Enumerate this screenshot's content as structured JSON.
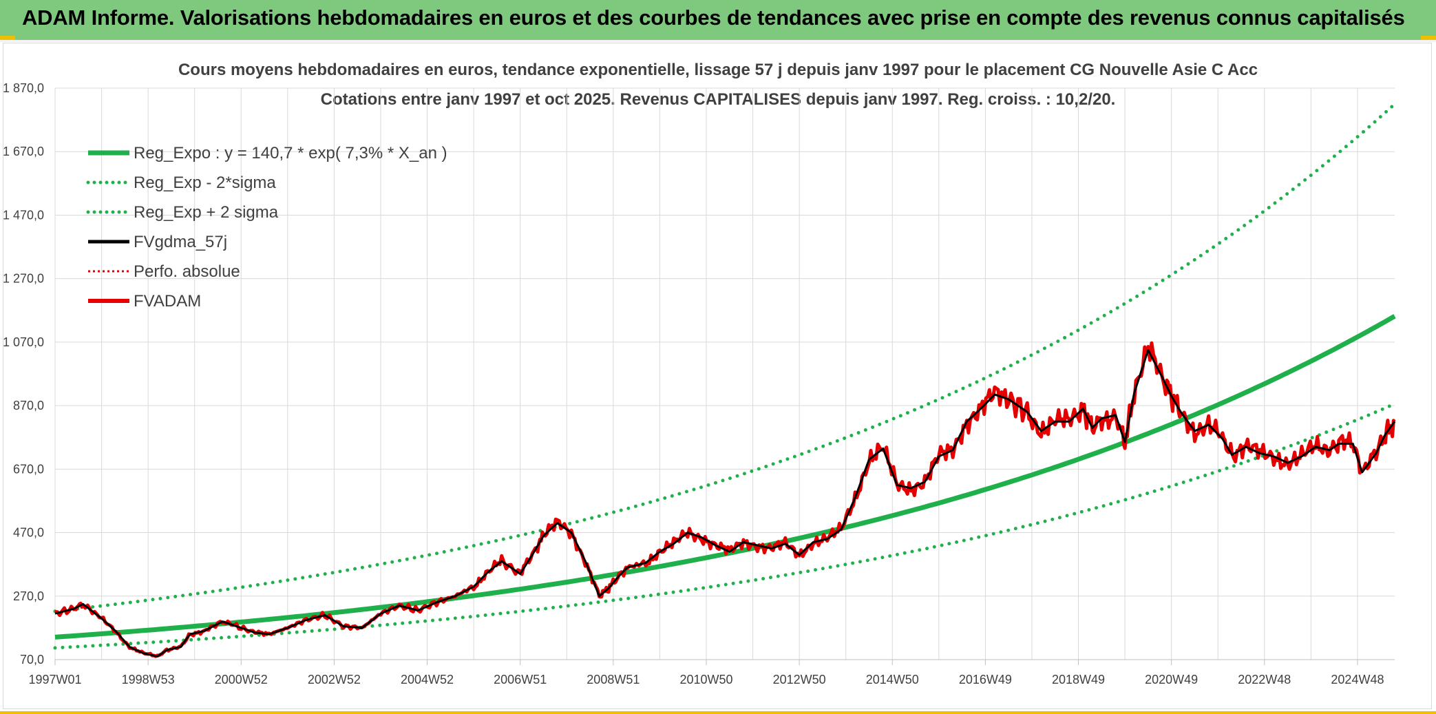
{
  "header": {
    "title": "ADAM Informe. Valorisations hebdomadaires en euros et des courbes de tendances avec prise en compte des revenus connus capitalisés"
  },
  "chart_data": {
    "type": "line",
    "title": "Cours moyens hebdomadaires en euros, tendance exponentielle, lissage 57 j depuis janv 1997 pour le placement CG Nouvelle Asie C Acc",
    "subtitle": "Cotations entre janv 1997 et oct 2025. Revenus CAPITALISES depuis janv 1997. Reg. croiss. : 10,2/20.",
    "xlabel": "",
    "ylabel": "",
    "ylim": [
      70,
      1870
    ],
    "xlim": [
      1997.0,
      2025.8
    ],
    "y_ticks": [
      "70,0",
      "270,0",
      "470,0",
      "670,0",
      "870,0",
      "1 070,0",
      "1 270,0",
      "1 470,0",
      "1 670,0",
      "1 870,0"
    ],
    "y_tick_values": [
      70,
      270,
      470,
      670,
      870,
      1070,
      1270,
      1470,
      1670,
      1870
    ],
    "x_ticks": [
      "1997W01",
      "1998W53",
      "2000W52",
      "2002W52",
      "2004W52",
      "2006W51",
      "2008W51",
      "2010W50",
      "2012W50",
      "2014W50",
      "2016W49",
      "2018W49",
      "2020W49",
      "2022W48",
      "2024W48"
    ],
    "x_tick_values": [
      1997.0,
      1999.0,
      2001.0,
      2003.0,
      2005.0,
      2007.0,
      2009.0,
      2011.0,
      2013.0,
      2015.0,
      2017.0,
      2019.0,
      2021.0,
      2023.0,
      2025.0
    ],
    "legend_position": "top-left",
    "regression": {
      "a": 140.7,
      "rate": 0.073,
      "lower_factor": 0.76,
      "upper_factor": 1.58
    },
    "series": [
      {
        "name": "Reg_Expo : y = 140,7 * exp( 7,3% *  X_an )",
        "style": "solid-thick",
        "color": "#1fb04c"
      },
      {
        "name": "Reg_Exp - 2*sigma",
        "style": "dotted",
        "color": "#1fb04c"
      },
      {
        "name": "Reg_Exp + 2 sigma",
        "style": "dotted",
        "color": "#1fb04c"
      },
      {
        "name": "FVgdma_57j",
        "style": "solid",
        "color": "#000000"
      },
      {
        "name": "Perfo. absolue",
        "style": "dotted-thin",
        "color": "#e00000"
      },
      {
        "name": "FVADAM",
        "style": "solid-thick",
        "color": "#e60000",
        "x": [
          1997.0,
          1997.4,
          1997.6,
          1998.0,
          1998.3,
          1998.6,
          1998.9,
          1999.2,
          1999.4,
          1999.7,
          1999.9,
          2000.2,
          2000.6,
          2000.9,
          2001.3,
          2001.6,
          2002.0,
          2002.4,
          2002.8,
          2003.2,
          2003.6,
          2004.0,
          2004.4,
          2004.8,
          2005.2,
          2005.6,
          2006.0,
          2006.3,
          2006.6,
          2007.0,
          2007.3,
          2007.5,
          2007.8,
          2008.1,
          2008.4,
          2008.7,
          2008.9,
          2009.1,
          2009.3,
          2009.7,
          2010.0,
          2010.3,
          2010.6,
          2010.9,
          2011.2,
          2011.5,
          2011.8,
          2012.1,
          2012.4,
          2012.7,
          2013.0,
          2013.3,
          2013.6,
          2013.9,
          2014.2,
          2014.5,
          2014.8,
          2015.1,
          2015.4,
          2015.7,
          2016.0,
          2016.3,
          2016.6,
          2016.9,
          2017.2,
          2017.5,
          2017.9,
          2018.2,
          2018.5,
          2018.8,
          2019.1,
          2019.3,
          2019.5,
          2019.8,
          2020.0,
          2020.2,
          2020.5,
          2020.8,
          2021.0,
          2021.2,
          2021.5,
          2021.8,
          2022.1,
          2022.3,
          2022.6,
          2022.9,
          2023.2,
          2023.5,
          2023.8,
          2024.1,
          2024.4,
          2024.6,
          2024.9,
          2025.1,
          2025.4,
          2025.6,
          2025.8
        ],
        "values": [
          215,
          230,
          245,
          200,
          160,
          110,
          90,
          80,
          100,
          110,
          150,
          160,
          190,
          175,
          155,
          150,
          170,
          195,
          210,
          175,
          170,
          215,
          240,
          225,
          250,
          270,
          300,
          345,
          380,
          340,
          410,
          460,
          500,
          470,
          380,
          270,
          295,
          330,
          360,
          375,
          410,
          435,
          470,
          455,
          430,
          410,
          440,
          430,
          420,
          435,
          400,
          440,
          450,
          480,
          580,
          700,
          735,
          620,
          610,
          630,
          710,
          730,
          820,
          860,
          905,
          890,
          850,
          790,
          820,
          820,
          860,
          800,
          830,
          840,
          755,
          910,
          1045,
          960,
          900,
          850,
          790,
          810,
          765,
          715,
          740,
          720,
          710,
          690,
          710,
          740,
          730,
          750,
          750,
          660,
          720,
          780,
          820
        ]
      }
    ]
  }
}
